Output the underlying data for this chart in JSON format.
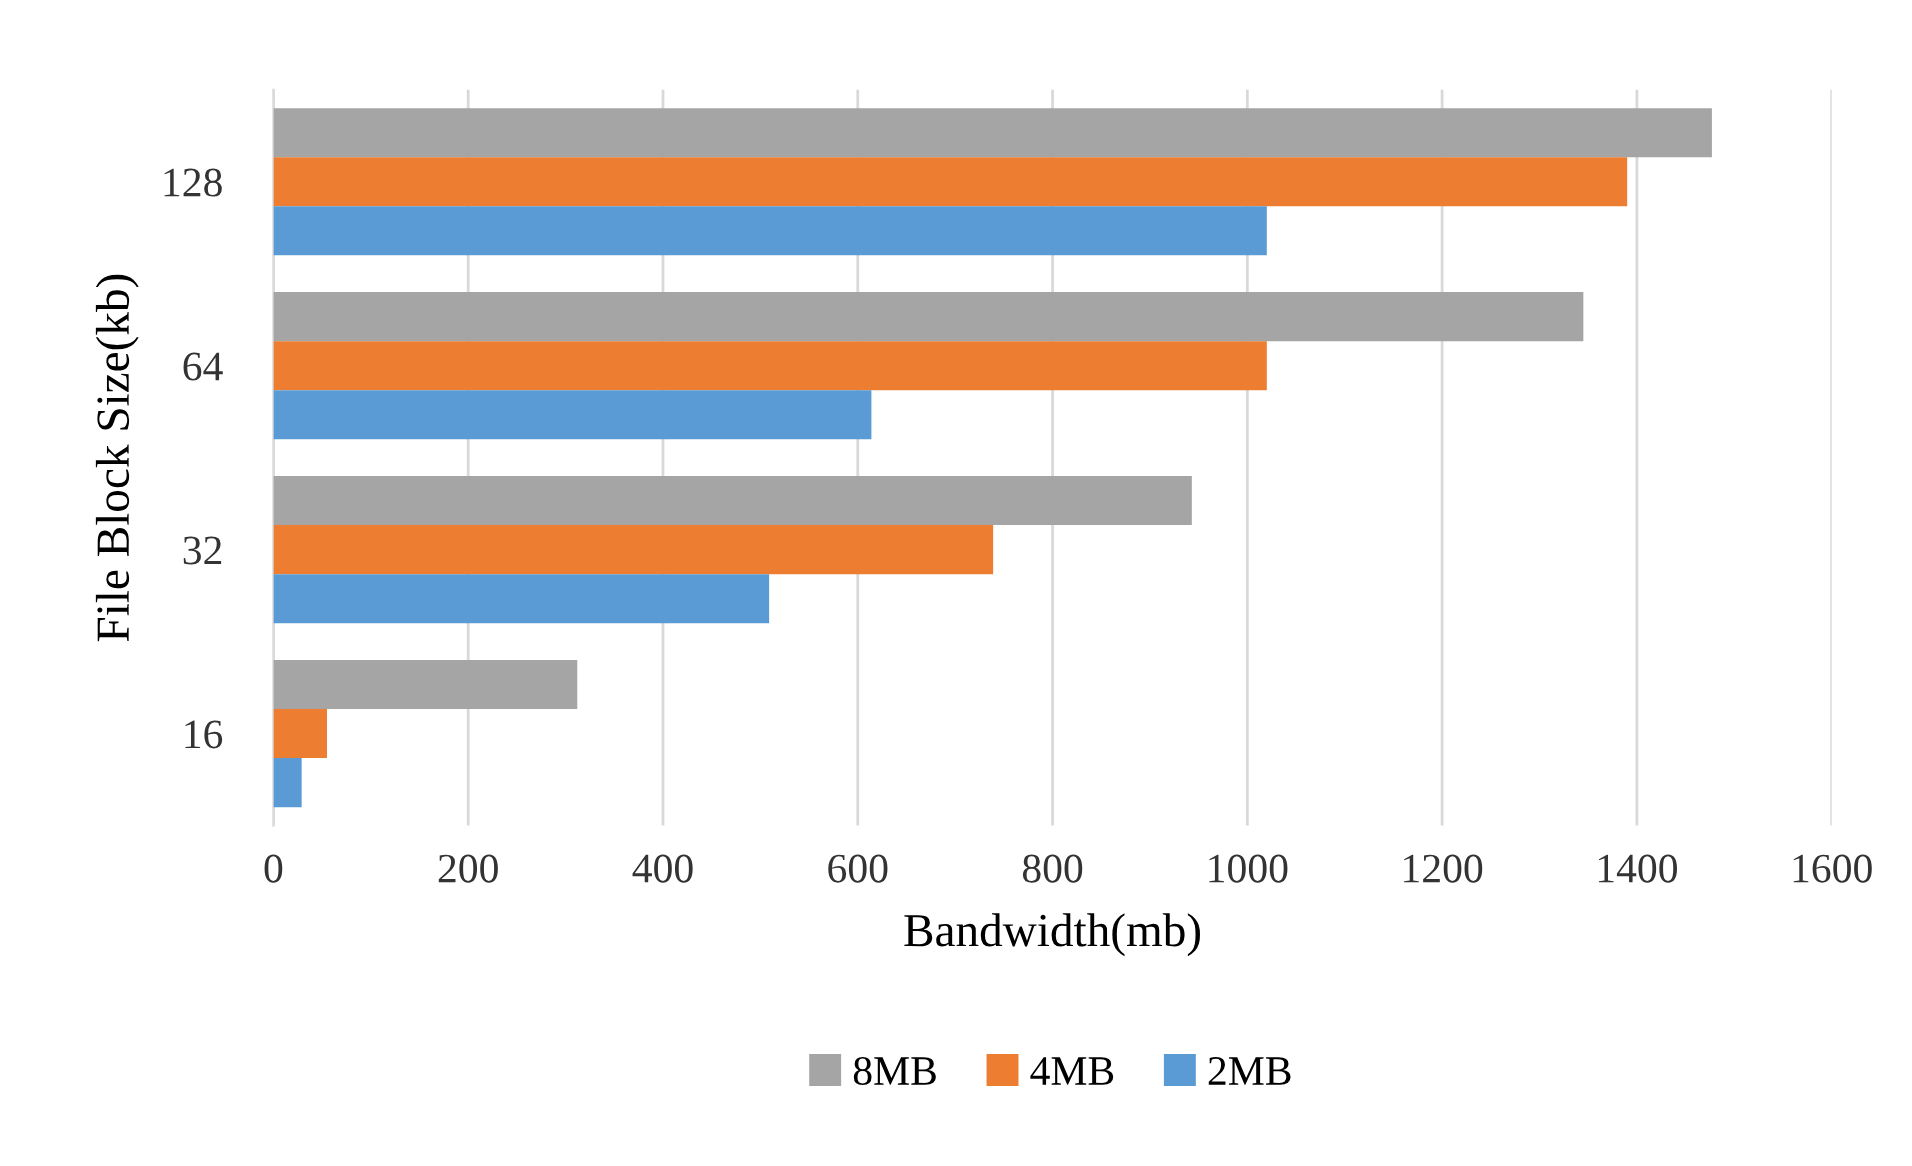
{
  "chart_data": {
    "type": "bar",
    "orientation": "horizontal",
    "xlabel": "Bandwidth(mb)",
    "ylabel": "File Block Size(kb)",
    "categories": [
      "128",
      "64",
      "32",
      "16"
    ],
    "series": [
      {
        "name": "8MB",
        "color": "#a5a5a5",
        "values": [
          1477,
          1345,
          943,
          312
        ]
      },
      {
        "name": "4MB",
        "color": "#ed7d31",
        "values": [
          1390,
          1020,
          739,
          55
        ]
      },
      {
        "name": "2MB",
        "color": "#5b9bd5",
        "values": [
          1020,
          614,
          509,
          29
        ]
      }
    ],
    "xlim": [
      0,
      1600
    ],
    "xticks": [
      0,
      200,
      400,
      600,
      800,
      1000,
      1200,
      1400,
      1600
    ],
    "grid": "x",
    "legend": "bottom"
  }
}
